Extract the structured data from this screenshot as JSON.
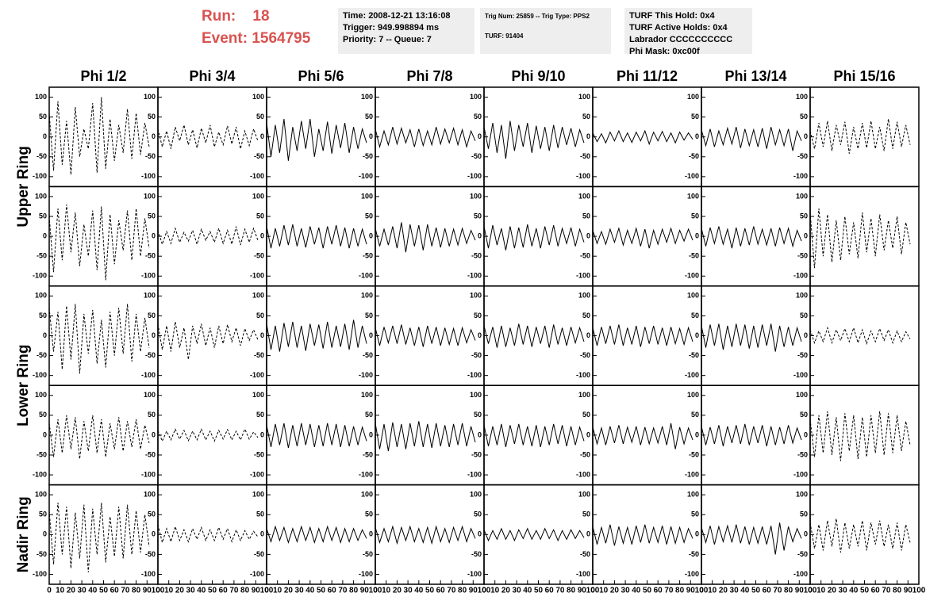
{
  "header": {
    "run": "Run:    18",
    "event": "Event: 1564795",
    "boxes": [
      [
        "Time: 2008-12-21 13:16:08",
        "Trigger: 949.998894 ms",
        "Priority: 7 -- Queue: 7"
      ],
      [
        "Trig Num: 25859 -- Trig Type: PPS2",
        "TURF: 91404"
      ],
      [
        "TURF This Hold: 0x4",
        "TURF Active Holds: 0x4",
        "Labrador CCCCCCCCCC",
        "Phi Mask: 0xc00f"
      ]
    ]
  },
  "columns": [
    {
      "label": "Phi 1/2",
      "line": "dashed"
    },
    {
      "label": "Phi 3/4",
      "line": "dashed"
    },
    {
      "label": "Phi 5/6",
      "line": "solid"
    },
    {
      "label": "Phi 7/8",
      "line": "solid"
    },
    {
      "label": "Phi 9/10",
      "line": "solid"
    },
    {
      "label": "Phi 11/12",
      "line": "solid"
    },
    {
      "label": "Phi 13/14",
      "line": "solid"
    },
    {
      "label": "Phi 15/16",
      "line": "dashed"
    }
  ],
  "ring_labels": [
    {
      "label": "Upper Ring",
      "rows": [
        0,
        1
      ]
    },
    {
      "label": "Lower Ring",
      "rows": [
        2,
        3
      ]
    },
    {
      "label": "Nadir Ring",
      "rows": [
        4
      ]
    }
  ],
  "axes": {
    "xlim": [
      0,
      100
    ],
    "xticks": [
      0,
      10,
      20,
      30,
      40,
      50,
      60,
      70,
      80,
      90,
      100
    ],
    "ylim": [
      -125,
      125
    ],
    "yticks": [
      -100,
      -50,
      0,
      50,
      100
    ]
  },
  "sample_x": [
    0,
    4,
    8,
    12,
    16,
    20,
    24,
    28,
    32,
    36,
    40,
    44,
    48,
    52,
    56,
    60,
    64,
    68,
    72,
    76,
    80,
    84,
    88,
    92
  ],
  "panels": [
    [
      [
        60,
        -85,
        90,
        -70,
        40,
        -95,
        75,
        -50,
        20,
        -30,
        85,
        -90,
        100,
        -80,
        45,
        -60,
        30,
        -40,
        70,
        -55,
        60,
        -45,
        35,
        -25
      ],
      [
        20,
        -25,
        15,
        -30,
        25,
        -10,
        30,
        -20,
        18,
        -28,
        22,
        -15,
        30,
        -25,
        12,
        -20,
        28,
        -18,
        25,
        -30,
        15,
        -22,
        20,
        -10
      ],
      [
        35,
        -50,
        30,
        -40,
        45,
        -60,
        25,
        -35,
        40,
        -30,
        45,
        -50,
        20,
        -35,
        38,
        -42,
        30,
        -28,
        35,
        -40,
        25,
        -30,
        20,
        -15
      ],
      [
        20,
        -25,
        15,
        -20,
        25,
        -18,
        22,
        -15,
        18,
        -25,
        20,
        -22,
        15,
        -20,
        25,
        -18,
        20,
        -15,
        22,
        -20,
        18,
        -25,
        15,
        -10
      ],
      [
        25,
        -30,
        35,
        -40,
        30,
        -55,
        40,
        -35,
        30,
        -25,
        35,
        -40,
        28,
        -30,
        25,
        -35,
        30,
        -28,
        25,
        -20,
        22,
        -25,
        18,
        -15
      ],
      [
        10,
        -12,
        8,
        -15,
        12,
        -10,
        15,
        -12,
        10,
        -14,
        12,
        -10,
        15,
        -18,
        12,
        -10,
        14,
        -12,
        10,
        -15,
        12,
        -8,
        10,
        -6
      ],
      [
        18,
        -22,
        20,
        -25,
        15,
        -20,
        22,
        -18,
        25,
        -28,
        20,
        -22,
        18,
        -25,
        22,
        -30,
        25,
        -20,
        18,
        -22,
        20,
        -35,
        15,
        -10
      ],
      [
        15,
        -30,
        35,
        -25,
        40,
        -35,
        30,
        -20,
        38,
        -42,
        25,
        -30,
        35,
        -28,
        40,
        -30,
        25,
        -35,
        45,
        -30,
        38,
        -25,
        30,
        -20
      ]
    ],
    [
      [
        50,
        -90,
        70,
        -60,
        80,
        -40,
        60,
        -75,
        30,
        -50,
        65,
        -85,
        75,
        -110,
        55,
        -70,
        40,
        -35,
        65,
        -60,
        70,
        -50,
        45,
        -30
      ],
      [
        15,
        -20,
        12,
        -18,
        20,
        -15,
        10,
        -12,
        15,
        -20,
        18,
        -10,
        12,
        -15,
        20,
        -18,
        15,
        -20,
        25,
        -22,
        18,
        -15,
        20,
        -10
      ],
      [
        25,
        -30,
        20,
        -25,
        28,
        -22,
        30,
        -25,
        20,
        -28,
        25,
        -20,
        22,
        -30,
        25,
        -20,
        28,
        -25,
        22,
        -30,
        20,
        -25,
        18,
        -20
      ],
      [
        20,
        -25,
        18,
        -22,
        25,
        -30,
        35,
        -40,
        30,
        -25,
        28,
        -35,
        30,
        -25,
        22,
        -28,
        20,
        -25,
        18,
        -22,
        20,
        -18,
        15,
        -10
      ],
      [
        25,
        -30,
        28,
        -22,
        20,
        -35,
        25,
        -30,
        22,
        -28,
        30,
        -25,
        20,
        -30,
        25,
        -22,
        28,
        -25,
        20,
        -18,
        22,
        -25,
        18,
        -15
      ],
      [
        15,
        -18,
        12,
        -20,
        18,
        -15,
        20,
        -22,
        15,
        -18,
        20,
        -25,
        18,
        -30,
        15,
        -20,
        18,
        -15,
        20,
        -18,
        15,
        -12,
        18,
        -10
      ],
      [
        20,
        -25,
        22,
        -18,
        25,
        -20,
        18,
        -30,
        22,
        -25,
        20,
        -22,
        25,
        -20,
        18,
        -22,
        20,
        -25,
        22,
        -18,
        20,
        -25,
        15,
        -12
      ],
      [
        60,
        -80,
        70,
        -50,
        55,
        -65,
        40,
        -60,
        50,
        -45,
        35,
        -55,
        60,
        -40,
        45,
        -50,
        55,
        -35,
        40,
        -30,
        50,
        -45,
        35,
        -20
      ]
    ],
    [
      [
        70,
        -40,
        60,
        -85,
        75,
        -60,
        80,
        -95,
        55,
        -45,
        65,
        -70,
        40,
        -80,
        60,
        -50,
        70,
        -45,
        80,
        -65,
        55,
        -40,
        45,
        -30
      ],
      [
        30,
        -35,
        25,
        -40,
        35,
        -30,
        20,
        -60,
        25,
        -20,
        30,
        -25,
        20,
        -30,
        25,
        -20,
        28,
        -15,
        20,
        -25,
        18,
        -12,
        15,
        -10
      ],
      [
        30,
        -35,
        25,
        -40,
        32,
        -28,
        35,
        -30,
        25,
        -38,
        30,
        -25,
        28,
        -32,
        35,
        -30,
        25,
        -28,
        30,
        -35,
        40,
        -30,
        25,
        -20
      ],
      [
        20,
        -25,
        22,
        -18,
        25,
        -20,
        28,
        -22,
        20,
        -25,
        22,
        -28,
        25,
        -20,
        22,
        -25,
        20,
        -22,
        18,
        -25,
        20,
        -18,
        15,
        -12
      ],
      [
        25,
        -20,
        22,
        -30,
        25,
        -28,
        20,
        -25,
        30,
        -22,
        25,
        -28,
        22,
        -20,
        25,
        -30,
        28,
        -22,
        20,
        -25,
        22,
        -18,
        20,
        -15
      ],
      [
        20,
        -25,
        22,
        -20,
        25,
        -22,
        28,
        -25,
        20,
        -22,
        25,
        -28,
        22,
        -20,
        25,
        -22,
        20,
        -25,
        22,
        -20,
        18,
        -22,
        20,
        -15
      ],
      [
        25,
        -30,
        28,
        -25,
        30,
        -35,
        25,
        -28,
        30,
        -25,
        28,
        -32,
        25,
        -30,
        28,
        -25,
        30,
        -40,
        25,
        -28,
        22,
        -25,
        20,
        -15
      ],
      [
        15,
        -18,
        12,
        -15,
        20,
        -18,
        15,
        -12,
        18,
        -15,
        20,
        -18,
        15,
        -20,
        12,
        -15,
        18,
        -12,
        15,
        -18,
        12,
        -15,
        10,
        -8
      ]
    ],
    [
      [
        30,
        -55,
        40,
        -45,
        50,
        -35,
        45,
        -60,
        35,
        -40,
        50,
        -45,
        40,
        -55,
        30,
        -35,
        45,
        -40,
        35,
        -30,
        40,
        -35,
        25,
        -20
      ],
      [
        12,
        -15,
        10,
        -12,
        15,
        -10,
        12,
        -14,
        10,
        -12,
        15,
        -12,
        10,
        -15,
        12,
        -10,
        14,
        -12,
        10,
        -12,
        15,
        -10,
        8,
        -6
      ],
      [
        25,
        -30,
        28,
        -25,
        30,
        -32,
        25,
        -28,
        30,
        -25,
        28,
        -30,
        25,
        -28,
        30,
        -25,
        28,
        -30,
        25,
        -28,
        22,
        -25,
        20,
        -15
      ],
      [
        30,
        -35,
        28,
        -40,
        32,
        -30,
        28,
        -35,
        30,
        -28,
        35,
        -30,
        28,
        -32,
        30,
        -28,
        25,
        -30,
        28,
        -25,
        30,
        -28,
        22,
        -18
      ],
      [
        25,
        -28,
        22,
        -25,
        28,
        -30,
        25,
        -22,
        28,
        -25,
        22,
        -28,
        25,
        -30,
        22,
        -25,
        28,
        -22,
        25,
        -28,
        22,
        -25,
        20,
        -15
      ],
      [
        20,
        -22,
        18,
        -25,
        22,
        -20,
        25,
        -22,
        20,
        -18,
        22,
        -25,
        20,
        -22,
        18,
        -20,
        22,
        -25,
        30,
        -35,
        20,
        -22,
        18,
        -12
      ],
      [
        22,
        -25,
        20,
        -22,
        25,
        -28,
        22,
        -20,
        25,
        -22,
        28,
        -25,
        22,
        -20,
        25,
        -28,
        22,
        -25,
        20,
        -22,
        25,
        -20,
        18,
        -12
      ],
      [
        40,
        -55,
        50,
        -45,
        60,
        -50,
        45,
        -65,
        55,
        -40,
        50,
        -60,
        45,
        -55,
        50,
        -45,
        60,
        -50,
        55,
        -45,
        50,
        -40,
        35,
        -25
      ]
    ],
    [
      [
        60,
        -75,
        80,
        -50,
        70,
        -85,
        55,
        -60,
        75,
        -95,
        65,
        -50,
        80,
        -70,
        45,
        -55,
        70,
        -60,
        75,
        -50,
        60,
        -45,
        50,
        -30
      ],
      [
        25,
        -20,
        15,
        -18,
        20,
        -15,
        12,
        -18,
        15,
        -12,
        18,
        -15,
        12,
        -15,
        18,
        -12,
        15,
        -18,
        12,
        -15,
        10,
        -12,
        8,
        -6
      ],
      [
        15,
        -18,
        20,
        -15,
        18,
        -20,
        15,
        -18,
        20,
        -15,
        18,
        -20,
        15,
        -18,
        20,
        -15,
        18,
        -20,
        15,
        -18,
        15,
        -15,
        12,
        -10
      ],
      [
        18,
        -20,
        15,
        -18,
        20,
        -22,
        18,
        -15,
        20,
        -18,
        15,
        -20,
        18,
        -22,
        20,
        -18,
        15,
        -20,
        18,
        -15,
        20,
        -18,
        15,
        -10
      ],
      [
        12,
        -15,
        10,
        -12,
        15,
        -12,
        10,
        -15,
        12,
        -10,
        15,
        -12,
        10,
        -12,
        15,
        -10,
        12,
        -15,
        10,
        -12,
        12,
        -10,
        10,
        -8
      ],
      [
        20,
        -25,
        18,
        -22,
        25,
        -28,
        20,
        -22,
        18,
        -25,
        22,
        -20,
        25,
        -22,
        18,
        -20,
        22,
        -25,
        20,
        -22,
        18,
        -20,
        15,
        -10
      ],
      [
        18,
        -20,
        22,
        -25,
        20,
        -18,
        22,
        -20,
        25,
        -22,
        20,
        -25,
        18,
        -22,
        20,
        -25,
        22,
        -50,
        30,
        -40,
        20,
        -18,
        15,
        -10
      ],
      [
        30,
        -35,
        25,
        -40,
        35,
        -30,
        40,
        -45,
        30,
        -35,
        25,
        -30,
        35,
        -40,
        30,
        -25,
        35,
        -30,
        25,
        -35,
        30,
        -40,
        25,
        -20
      ]
    ]
  ]
}
